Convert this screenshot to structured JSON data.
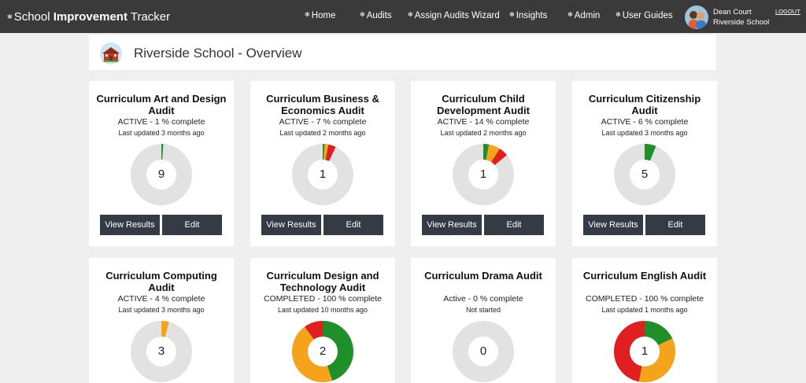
{
  "header": {
    "brand_prefix": "School",
    "brand_bold": "Improvement",
    "brand_suffix": "Tracker",
    "nav": [
      "Home",
      "Audits",
      "Assign Audits Wizard",
      "Insights",
      "Admin",
      "User Guides"
    ],
    "user_name": "Dean Court",
    "user_school": "Riverside School",
    "logout": "LOGOUT"
  },
  "overview": {
    "title": "Riverside School - Overview"
  },
  "colors": {
    "green": "#1f8f2a",
    "orange": "#f5a31a",
    "red": "#e02020",
    "track": "#e2e2e2",
    "button": "#353b45",
    "topbar": "#3a3a3a"
  },
  "cards": [
    {
      "title": "Curriculum Art and Design Audit",
      "status": "ACTIVE - 1 % complete",
      "updated": "Last updated 3 months ago",
      "count": "9",
      "segments": [
        {
          "color": "green",
          "value": 1
        }
      ],
      "view_label": "View Results",
      "edit_label": "Edit"
    },
    {
      "title": "Curriculum Business & Economics Audit",
      "status": "ACTIVE - 7 % complete",
      "updated": "Last updated 2 months ago",
      "count": "1",
      "segments": [
        {
          "color": "green",
          "value": 1
        },
        {
          "color": "orange",
          "value": 2
        },
        {
          "color": "red",
          "value": 4
        }
      ],
      "view_label": "View Results",
      "edit_label": "Edit"
    },
    {
      "title": "Curriculum Child Development Audit",
      "status": "ACTIVE - 14 % complete",
      "updated": "Last updated 2 months ago",
      "count": "1",
      "segments": [
        {
          "color": "green",
          "value": 3
        },
        {
          "color": "orange",
          "value": 6
        },
        {
          "color": "red",
          "value": 5
        }
      ],
      "view_label": "View Results",
      "edit_label": "Edit"
    },
    {
      "title": "Curriculum Citizenship Audit",
      "status": "ACTIVE - 6 % complete",
      "updated": "Last updated 3 months ago",
      "count": "5",
      "segments": [
        {
          "color": "green",
          "value": 6
        }
      ],
      "view_label": "View Results",
      "edit_label": "Edit"
    },
    {
      "title": "Curriculum Computing Audit",
      "status": "ACTIVE - 4 % complete",
      "updated": "Last updated 3 months ago",
      "count": "3",
      "segments": [
        {
          "color": "orange",
          "value": 4
        }
      ]
    },
    {
      "title": "Curriculum Design and Technology Audit",
      "status": "COMPLETED - 100 % complete",
      "updated": "Last updated 10 months ago",
      "count": "2",
      "segments": [
        {
          "color": "green",
          "value": 45
        },
        {
          "color": "orange",
          "value": 45
        },
        {
          "color": "red",
          "value": 10
        }
      ]
    },
    {
      "title": "Curriculum Drama Audit",
      "status": "Active - 0 % complete",
      "updated": "Not started",
      "count": "0",
      "segments": []
    },
    {
      "title": "Curriculum English Audit",
      "status": "COMPLETED - 100 % complete",
      "updated": "Last updated 1 months ago",
      "count": "1",
      "segments": [
        {
          "color": "green",
          "value": 18
        },
        {
          "color": "orange",
          "value": 35
        },
        {
          "color": "red",
          "value": 47
        }
      ]
    }
  ]
}
